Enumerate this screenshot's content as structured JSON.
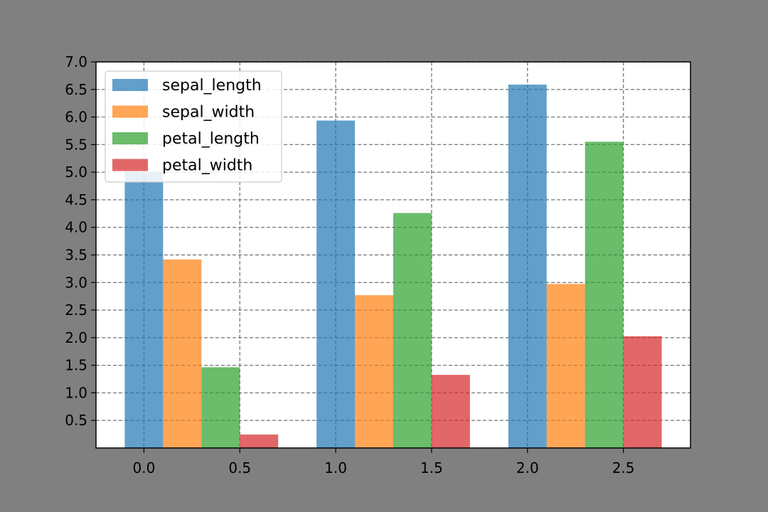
{
  "chart_data": {
    "type": "bar",
    "x_positions": [
      0,
      1,
      2
    ],
    "bar_width": 0.2,
    "series": [
      {
        "name": "sepal_length",
        "values": [
          5.006,
          5.936,
          6.588
        ],
        "color": "#1f77b4"
      },
      {
        "name": "sepal_width",
        "values": [
          3.418,
          2.77,
          2.974
        ],
        "color": "#ff7f0e"
      },
      {
        "name": "petal_length",
        "values": [
          1.464,
          4.26,
          5.552
        ],
        "color": "#2ca02c"
      },
      {
        "name": "petal_width",
        "values": [
          0.244,
          1.326,
          2.026
        ],
        "color": "#d62728"
      }
    ],
    "bar_alpha": 0.7,
    "xlim": [
      -0.25,
      2.85
    ],
    "ylim": [
      0,
      7.0
    ],
    "xticks": [
      0.0,
      0.5,
      1.0,
      1.5,
      2.0,
      2.5
    ],
    "xtick_labels": [
      "0.0",
      "0.5",
      "1.0",
      "1.5",
      "2.0",
      "2.5"
    ],
    "yticks": [
      0.5,
      1.0,
      1.5,
      2.0,
      2.5,
      3.0,
      3.5,
      4.0,
      4.5,
      5.0,
      5.5,
      6.0,
      6.5,
      7.0
    ],
    "ytick_labels": [
      "0.5",
      "1.0",
      "1.5",
      "2.0",
      "2.5",
      "3.0",
      "3.5",
      "4.0",
      "4.5",
      "5.0",
      "5.5",
      "6.0",
      "6.5",
      "7.0"
    ],
    "grid": true,
    "grid_style": "dashed",
    "grid_color": "#808080",
    "legend_position": "upper-left",
    "title": "",
    "xlabel": "",
    "ylabel": ""
  }
}
